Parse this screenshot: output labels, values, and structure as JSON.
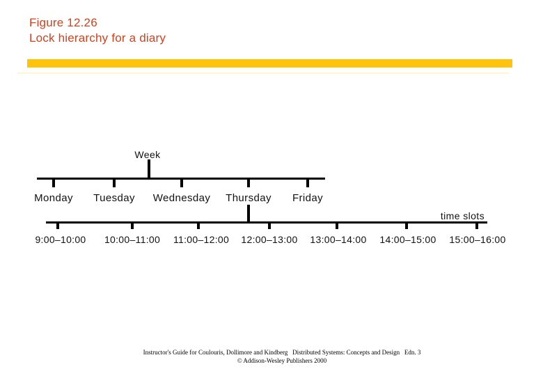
{
  "header": {
    "figure_number": "Figure 12.26",
    "figure_title": "Lock hierarchy for a diary"
  },
  "colors": {
    "title_red": "#d2421e",
    "bar_yellow": "#ffc30b",
    "diagram_black": "#000000"
  },
  "diagram": {
    "root_label": "Week",
    "branch_caption": "time slots",
    "days": [
      "Monday",
      "Tuesday",
      "Wednesday",
      "Thursday",
      "Friday"
    ],
    "expanded_day": "Thursday",
    "time_slots": [
      "9:00–10:00",
      "10:00–11:00",
      "11:00–12:00",
      "12:00–13:00",
      "13:00–14:00",
      "14:00–15:00",
      "15:00–16:00"
    ]
  },
  "footer": {
    "credit_line": "Instructor's Guide for Coulouris, Dollimore and Kindberg   Distributed Systems: Concepts and Design   Edn. 3",
    "copyright_line": "© Addison-Wesley Publishers 2000"
  }
}
